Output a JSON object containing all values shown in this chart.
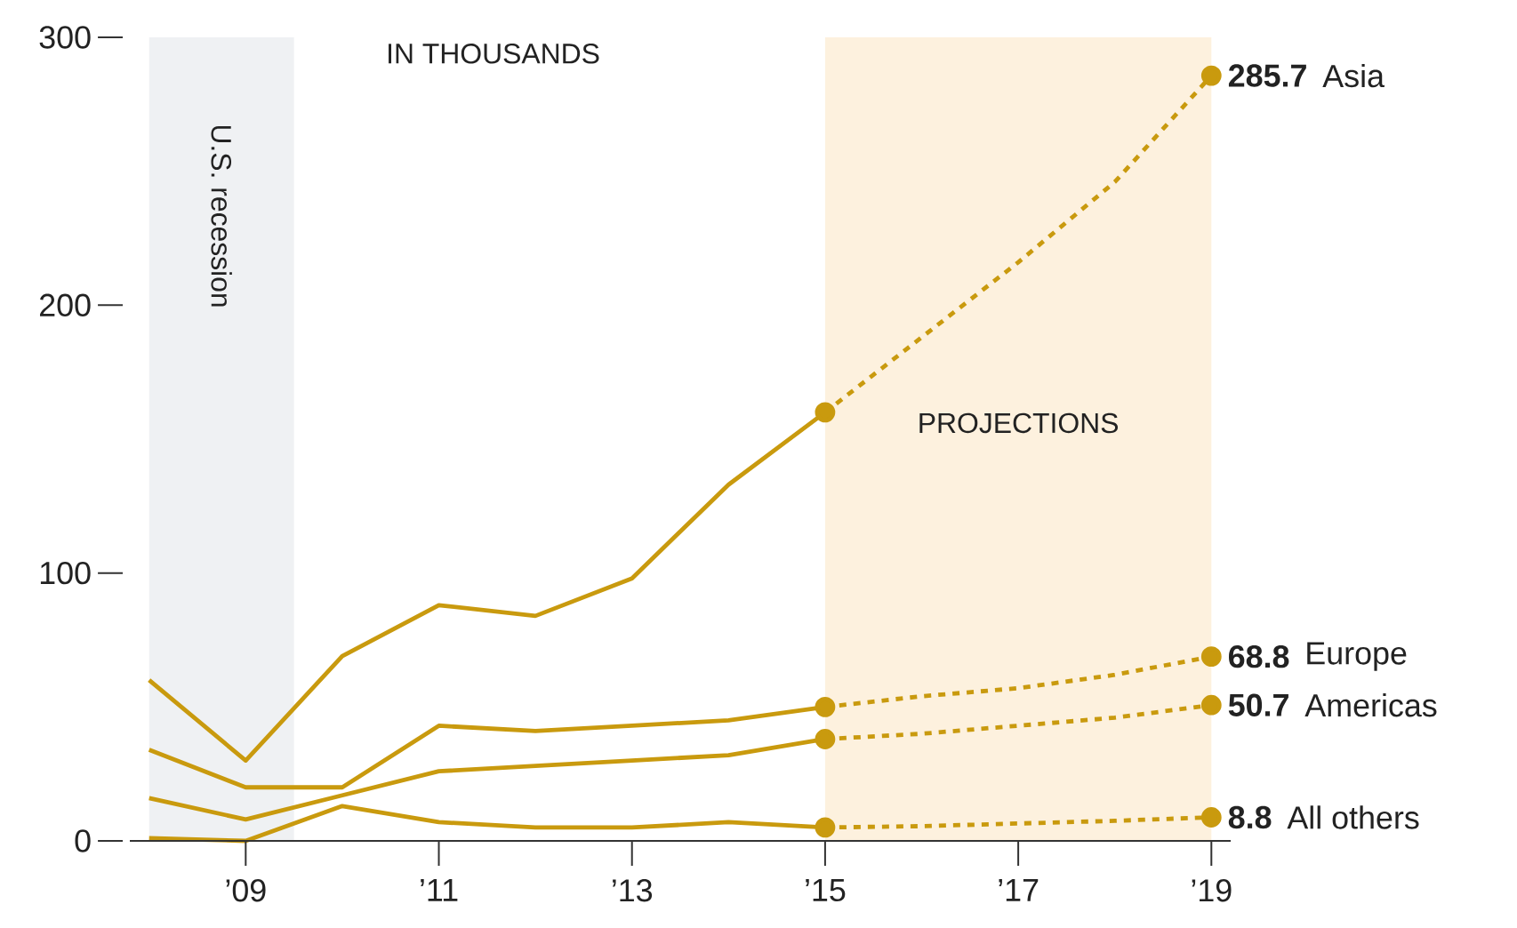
{
  "chart_data": {
    "type": "line",
    "annotations": [
      "IN THOUSANDS"
    ],
    "xlim": [
      2007.8,
      2019.2
    ],
    "xticks": [
      {
        "value": 2009,
        "label": "’09"
      },
      {
        "value": 2011,
        "label": "’11"
      },
      {
        "value": 2013,
        "label": "’13"
      },
      {
        "value": 2015,
        "label": "’15"
      },
      {
        "value": 2017,
        "label": "’17"
      },
      {
        "value": 2019,
        "label": "’19"
      }
    ],
    "ylim": [
      0,
      300
    ],
    "yticks": [
      0,
      100,
      200,
      300
    ],
    "grid": false,
    "bands": [
      {
        "axis": "x",
        "from": 2008,
        "to": 2009.5,
        "label": "U.S. recession",
        "color": "#eff1f3"
      },
      {
        "axis": "x",
        "from": 2015,
        "to": 2019,
        "label": "PROJECTIONS",
        "color": "#fdf1de"
      }
    ],
    "series": [
      {
        "color": "#c99a0e",
        "line_style": "solid",
        "marker": "none",
        "x": [
          2008,
          2009,
          2010,
          2011,
          2012,
          2013,
          2014,
          2015
        ],
        "values": [
          60,
          30,
          69,
          88,
          84,
          98,
          133,
          160
        ]
      },
      {
        "color": "#c99a0e",
        "line_style": "solid",
        "marker": "none",
        "x": [
          2008,
          2009,
          2010,
          2011,
          2012,
          2013,
          2014,
          2015
        ],
        "values": [
          34,
          20,
          20,
          43,
          41,
          43,
          45,
          50
        ]
      },
      {
        "color": "#c99a0e",
        "line_style": "solid",
        "marker": "none",
        "x": [
          2008,
          2009,
          2010,
          2011,
          2012,
          2013,
          2014,
          2015
        ],
        "values": [
          16,
          8,
          17,
          26,
          28,
          30,
          32,
          38
        ]
      },
      {
        "color": "#c99a0e",
        "line_style": "solid",
        "marker": "none",
        "x": [
          2008,
          2009,
          2010,
          2011,
          2012,
          2013,
          2014,
          2015
        ],
        "values": [
          1,
          0,
          13,
          7,
          5,
          5,
          7,
          5
        ]
      },
      {
        "name": "Asia",
        "color": "#c99a0e",
        "line_style": "dotted",
        "marker": "none",
        "x": [
          2015,
          2016,
          2017,
          2018,
          2019
        ],
        "values": [
          160,
          188,
          216,
          246,
          285.7
        ],
        "value_labels": [
          null,
          null,
          null,
          null,
          "**285.7**"
        ]
      },
      {
        "name": "Europe",
        "color": "#c99a0e",
        "line_style": "dotted",
        "marker": "none",
        "x": [
          2015,
          2016,
          2017,
          2018,
          2019
        ],
        "values": [
          50,
          54,
          57,
          62,
          68.8
        ],
        "value_labels": [
          null,
          null,
          null,
          null,
          "**68.8**"
        ]
      },
      {
        "name": "Americas",
        "color": "#c99a0e",
        "line_style": "dotted",
        "marker": "none",
        "x": [
          2015,
          2016,
          2017,
          2018,
          2019
        ],
        "values": [
          38,
          40,
          43,
          46,
          50.7
        ],
        "value_labels": [
          null,
          null,
          null,
          null,
          "**50.7**"
        ]
      },
      {
        "name": "All others",
        "color": "#c99a0e",
        "line_style": "dotted",
        "marker": "none",
        "x": [
          2015,
          2016,
          2017,
          2018,
          2019
        ],
        "values": [
          5,
          5.5,
          6.5,
          7.5,
          8.8
        ],
        "value_labels": [
          null,
          null,
          null,
          null,
          "**8.8**"
        ]
      },
      {
        "type": "scatter",
        "color": "#c99a0e",
        "marker": "circle",
        "x": [
          2015,
          2019
        ],
        "values": [
          160,
          285.7
        ]
      },
      {
        "type": "scatter",
        "color": "#c99a0e",
        "marker": "circle",
        "x": [
          2015,
          2019
        ],
        "values": [
          50,
          68.8
        ]
      },
      {
        "type": "scatter",
        "color": "#c99a0e",
        "marker": "circle",
        "x": [
          2015,
          2019
        ],
        "values": [
          38,
          50.7
        ]
      },
      {
        "type": "scatter",
        "color": "#c99a0e",
        "marker": "circle",
        "x": [
          2015,
          2019
        ],
        "values": [
          5,
          8.8
        ]
      }
    ]
  }
}
